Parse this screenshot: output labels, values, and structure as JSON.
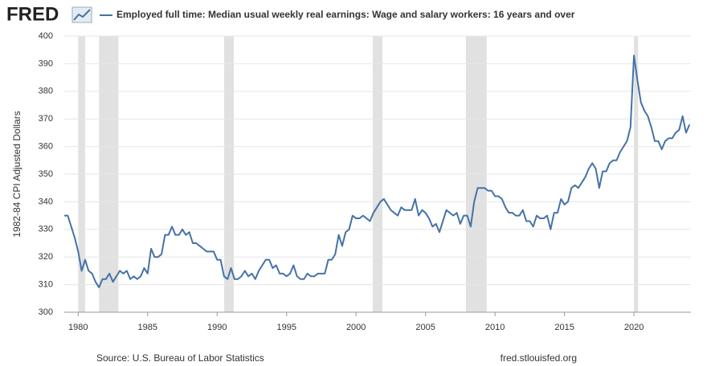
{
  "logo": "FRED",
  "source": "Source: U.S. Bureau of Labor Statistics",
  "site": "fred.stlouisfed.org",
  "chart_data": {
    "type": "line",
    "y_label": "1982-84 CPI Adjusted Dollars",
    "start": 1979,
    "step": 0.25,
    "series": [
      {
        "name": "Employed full time: Median usual weekly real earnings: Wage and salary workers: 16 years and over",
        "color": "#4572a7",
        "values": [
          335,
          335,
          331,
          327,
          322,
          315,
          319,
          315,
          314,
          311,
          309,
          312,
          312,
          314,
          311,
          313,
          315,
          314,
          315,
          312,
          313,
          312,
          313,
          316,
          314,
          323,
          320,
          320,
          321,
          328,
          328,
          331,
          328,
          328,
          330,
          328,
          329,
          325,
          325,
          324,
          323,
          322,
          322,
          322,
          319,
          319,
          313,
          312,
          316,
          312,
          312,
          313,
          315,
          313,
          314,
          312,
          315,
          317,
          319,
          319,
          316,
          317,
          314,
          314,
          313,
          314,
          317,
          313,
          312,
          312,
          314,
          313,
          313,
          314,
          314,
          314,
          319,
          319,
          321,
          328,
          324,
          329,
          330,
          335,
          334,
          334,
          335,
          334,
          333,
          336,
          338,
          340,
          341,
          339,
          337,
          336,
          335,
          338,
          337,
          337,
          337,
          341,
          335,
          337,
          336,
          334,
          331,
          332,
          329,
          333,
          337,
          336,
          335,
          336,
          332,
          335,
          335,
          331,
          340,
          345,
          345,
          345,
          344,
          344,
          342,
          342,
          341,
          338,
          336,
          336,
          335,
          335,
          337,
          333,
          333,
          331,
          335,
          334,
          334,
          335,
          330,
          336,
          336,
          341,
          339,
          340,
          345,
          346,
          345,
          347,
          349,
          352,
          354,
          352,
          345,
          351,
          351,
          354,
          355,
          355,
          358,
          360,
          362,
          367,
          393,
          384,
          376,
          373,
          371,
          367,
          362,
          362,
          359,
          362,
          363,
          363,
          365,
          366,
          371,
          365,
          368
        ]
      }
    ],
    "recessions": [
      [
        1980.0,
        1980.5
      ],
      [
        1981.5,
        1982.9
      ],
      [
        1990.5,
        1991.2
      ],
      [
        2001.2,
        2001.9
      ],
      [
        2007.9,
        2009.4
      ],
      [
        2020.0,
        2020.3
      ]
    ],
    "xlim": [
      1979,
      2024.1
    ],
    "xticks": [
      1980,
      1985,
      1990,
      1995,
      2000,
      2005,
      2010,
      2015,
      2020
    ],
    "ylim": [
      300,
      400
    ],
    "yticks": [
      300,
      310,
      320,
      330,
      340,
      350,
      360,
      370,
      380,
      390,
      400
    ],
    "grid": true
  }
}
